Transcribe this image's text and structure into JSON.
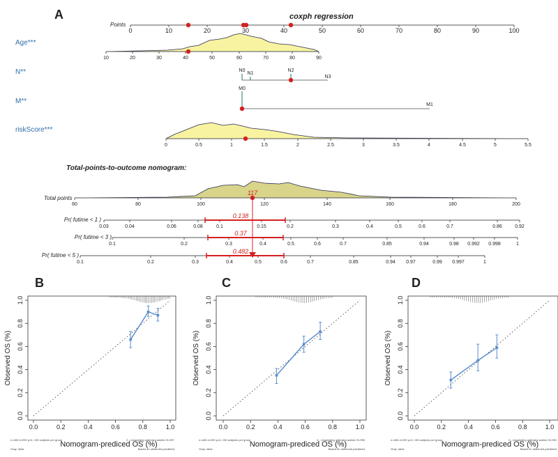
{
  "panel_a": {
    "label": "A",
    "title": "coxph regression",
    "points_label": "Points",
    "points_ticks": [
      "0",
      "10",
      "20",
      "30",
      "40",
      "50",
      "60",
      "70",
      "80",
      "90",
      "100"
    ],
    "variables": [
      {
        "name": "Age***",
        "ticks": [
          "10",
          "20",
          "30",
          "40",
          "50",
          "60",
          "70",
          "80",
          "90"
        ]
      },
      {
        "name": "N**",
        "levels": [
          "N0",
          "N1",
          "N2",
          "N3"
        ]
      },
      {
        "name": "M**",
        "levels": [
          "M0",
          "M1"
        ]
      },
      {
        "name": "riskScore***",
        "ticks": [
          "0",
          "0.5",
          "1",
          "1.5",
          "2",
          "2.5",
          "3",
          "3.5",
          "4",
          "4.5",
          "5",
          "5.5"
        ]
      }
    ],
    "subtitle": "Total-points-to-outcome nomogram:",
    "total_label": "Total points",
    "total_ticks": [
      "60",
      "80",
      "100",
      "120",
      "140",
      "160",
      "180",
      "200"
    ],
    "total_value": "117",
    "outcomes": [
      {
        "label": "Pr( futime < 1 )",
        "value": "0.138",
        "ticks": [
          "0.03",
          "0.04",
          "0.06",
          "0.08",
          "0.1",
          "0.15",
          "0.2",
          "0.3",
          "0.4",
          "0.5",
          "0.6",
          "0.7",
          "0.86",
          "0.92"
        ]
      },
      {
        "label": "Pr( futime < 3 )",
        "value": "0.37",
        "ticks": [
          "0.1",
          "0.2",
          "0.3",
          "0.4",
          "0.5",
          "0.6",
          "0.7",
          "0.85",
          "0.94",
          "0.98",
          "0.992",
          "0.998",
          "1"
        ]
      },
      {
        "label": "Pr( futime < 5 )",
        "value": "0.482",
        "ticks": [
          "0.1",
          "0.2",
          "0.3",
          "0.4",
          "0.5",
          "0.6",
          "0.7",
          "0.85",
          "0.94",
          "0.97",
          "0.99",
          "0.997",
          "1"
        ]
      }
    ]
  },
  "chart_data": [
    {
      "type": "line",
      "panel": "B",
      "xlabel": "Nomogram-prediced OS (%)",
      "ylabel": "Observed OS (%)",
      "xlim": [
        0,
        1
      ],
      "ylim": [
        0,
        1
      ],
      "ticks": [
        "0.0",
        "0.2",
        "0.4",
        "0.6",
        "0.8",
        "1.0"
      ],
      "x": [
        0.71,
        0.84,
        0.91
      ],
      "y": [
        0.66,
        0.9,
        0.87
      ],
      "err_low": [
        0.59,
        0.86,
        0.82
      ],
      "err_high": [
        0.73,
        0.95,
        0.93
      ],
      "note_left": "n=465 d=209 p=6, 130 subjects per group",
      "note_right": "X - resampling optimism added, B=997",
      "note_gray": "Gray: ideal",
      "note_based": "Based on observed-predicted"
    },
    {
      "type": "line",
      "panel": "C",
      "xlabel": "Nomogram-prediced OS (%)",
      "ylabel": "Observed OS (%)",
      "xlim": [
        0,
        1
      ],
      "ylim": [
        0,
        1
      ],
      "ticks": [
        "0.0",
        "0.2",
        "0.4",
        "0.6",
        "0.8",
        "1.0"
      ],
      "x": [
        0.39,
        0.59,
        0.71
      ],
      "y": [
        0.35,
        0.62,
        0.73
      ],
      "err_low": [
        0.28,
        0.55,
        0.66
      ],
      "err_high": [
        0.41,
        0.69,
        0.81
      ],
      "note_left": "n=465 d=209 p=6, 130 subjects per group",
      "note_right": "X - resampling optimism added, B=995",
      "note_gray": "Gray: ideal",
      "note_based": "Based on observed-predicted"
    },
    {
      "type": "line",
      "panel": "D",
      "xlabel": "Nomogram-prediced OS (%)",
      "ylabel": "Observed OS (%)",
      "xlim": [
        0,
        1
      ],
      "ylim": [
        0,
        1
      ],
      "ticks": [
        "0.0",
        "0.2",
        "0.4",
        "0.6",
        "0.8",
        "1.0"
      ],
      "x": [
        0.27,
        0.47,
        0.61
      ],
      "y": [
        0.31,
        0.48,
        0.59
      ],
      "err_low": [
        0.24,
        0.39,
        0.5
      ],
      "err_high": [
        0.38,
        0.62,
        0.7
      ],
      "note_left": "n=465 d=209 p=6, 130 subjects per group",
      "note_right": "X - resampling optimism added, B=992",
      "note_gray": "Gray: ideal",
      "note_based": "Based on observed-predicted"
    }
  ],
  "colors": {
    "red": "#d42020",
    "blue": "#5b8fd0",
    "density": "#f7f3a0",
    "density_total": "#d8d48a",
    "label_blue": "#2f6fa8"
  }
}
